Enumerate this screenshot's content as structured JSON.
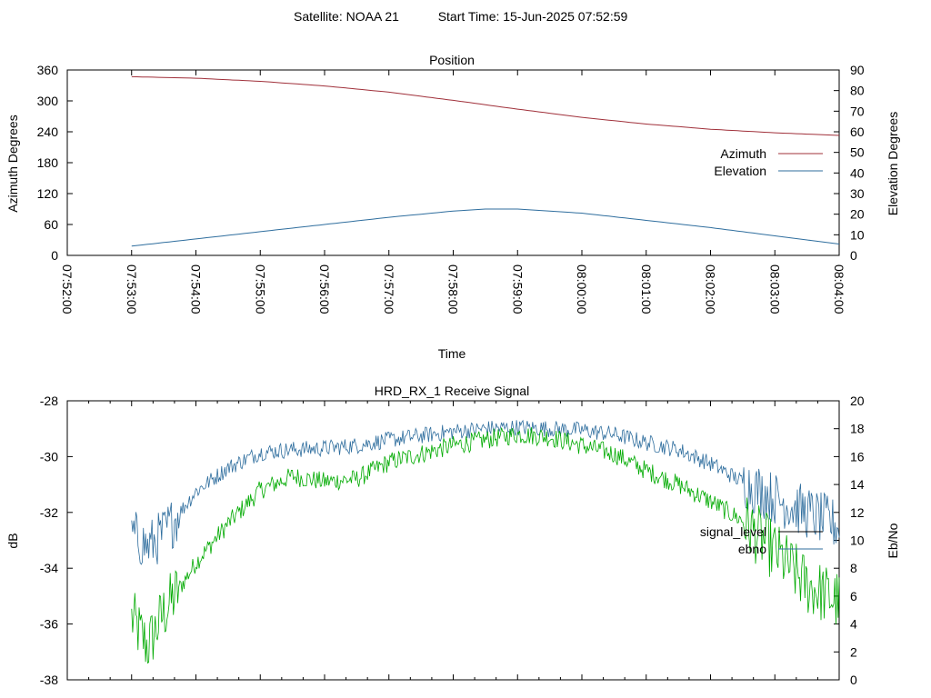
{
  "header": {
    "satellite": "Satellite: NOAA 21",
    "start_time": "Start Time: 15-Jun-2025 07:52:59"
  },
  "chart_data": [
    {
      "type": "line",
      "title": "Position",
      "xlabel": "Time",
      "ylabel": "Azimuth Degrees",
      "y2label": "Elevation Degrees",
      "ylim": [
        0,
        360
      ],
      "y2lim": [
        0,
        90
      ],
      "yticks": [
        0,
        60,
        120,
        180,
        240,
        300,
        360
      ],
      "y2ticks": [
        0,
        10,
        20,
        30,
        40,
        50,
        60,
        70,
        80,
        90
      ],
      "xlim": [
        "07:52:00",
        "08:04:00"
      ],
      "xticks": [
        "07:52:00",
        "07:53:00",
        "07:54:00",
        "07:55:00",
        "07:56:00",
        "07:57:00",
        "07:58:00",
        "07:59:00",
        "08:00:00",
        "08:01:00",
        "08:02:00",
        "08:03:00",
        "08:04:00"
      ],
      "grid": false,
      "legend": "right",
      "series": [
        {
          "name": "Azimuth",
          "axis": "y",
          "color": "#a0303a",
          "x": [
            "07:53:00",
            "07:54:00",
            "07:55:00",
            "07:56:00",
            "07:57:00",
            "07:58:00",
            "07:59:00",
            "08:00:00",
            "08:01:00",
            "08:02:00",
            "08:03:00",
            "08:04:00"
          ],
          "values": [
            347,
            344,
            338,
            329,
            317,
            301,
            284,
            268,
            255,
            245,
            238,
            233
          ]
        },
        {
          "name": "Elevation",
          "axis": "y2",
          "color": "#2f6e9e",
          "x": [
            "07:53:00",
            "07:54:00",
            "07:55:00",
            "07:56:00",
            "07:57:00",
            "07:58:00",
            "07:58:30",
            "07:59:00",
            "08:00:00",
            "08:01:00",
            "08:02:00",
            "08:03:00",
            "08:04:00"
          ],
          "values": [
            4.5,
            8,
            11.5,
            15,
            18.5,
            21.5,
            22.5,
            22.5,
            20.5,
            17,
            13.5,
            9.5,
            5.5
          ]
        }
      ]
    },
    {
      "type": "line",
      "title": "HRD_RX_1 Receive Signal",
      "ylabel": "dB",
      "y2label": "Eb/No",
      "ylim": [
        -38,
        -28
      ],
      "y2lim": [
        0,
        20
      ],
      "yticks": [
        -38,
        -36,
        -34,
        -32,
        -30,
        -28
      ],
      "y2ticks": [
        0,
        2,
        4,
        6,
        8,
        10,
        12,
        14,
        16,
        18,
        20
      ],
      "xlim": [
        "07:52:00",
        "08:04:00"
      ],
      "grid": false,
      "legend": "right",
      "series": [
        {
          "name": "signal_level",
          "axis": "y",
          "color": "#00aa00",
          "x": [
            "07:53:00",
            "07:53:15",
            "07:53:30",
            "07:54:00",
            "07:54:30",
            "07:55:00",
            "07:55:30",
            "07:56:00",
            "07:56:30",
            "07:57:00",
            "07:57:30",
            "07:58:00",
            "07:58:30",
            "07:59:00",
            "07:59:30",
            "08:00:00",
            "08:00:30",
            "08:01:00",
            "08:01:30",
            "08:02:00",
            "08:02:30",
            "08:03:00",
            "08:03:30",
            "08:04:00"
          ],
          "values": [
            -35.8,
            -36.8,
            -35.6,
            -33.8,
            -32.4,
            -31.2,
            -30.7,
            -30.9,
            -30.8,
            -30.2,
            -29.9,
            -29.6,
            -29.4,
            -29.2,
            -29.3,
            -29.6,
            -29.9,
            -30.5,
            -31.0,
            -31.6,
            -32.3,
            -33.4,
            -34.6,
            -35.2
          ],
          "note": ""
        },
        {
          "name": "ebno",
          "axis": "y2",
          "color": "#2f6e9e",
          "x": [
            "07:53:00",
            "07:53:15",
            "07:53:30",
            "07:54:00",
            "07:54:30",
            "07:55:00",
            "07:55:30",
            "07:56:00",
            "07:56:30",
            "07:57:00",
            "07:57:30",
            "07:58:00",
            "07:58:30",
            "07:59:00",
            "07:59:30",
            "08:00:00",
            "08:00:30",
            "08:01:00",
            "08:01:30",
            "08:02:00",
            "08:02:30",
            "08:03:00",
            "08:03:30",
            "08:04:00"
          ],
          "values": [
            10.5,
            9.5,
            10.5,
            13.5,
            15.2,
            16.3,
            16.5,
            16.6,
            16.8,
            17.2,
            17.5,
            17.8,
            18.0,
            18.1,
            18.0,
            17.9,
            17.6,
            17.0,
            16.5,
            15.5,
            14.2,
            13.0,
            12.0,
            11.0
          ]
        }
      ]
    }
  ]
}
